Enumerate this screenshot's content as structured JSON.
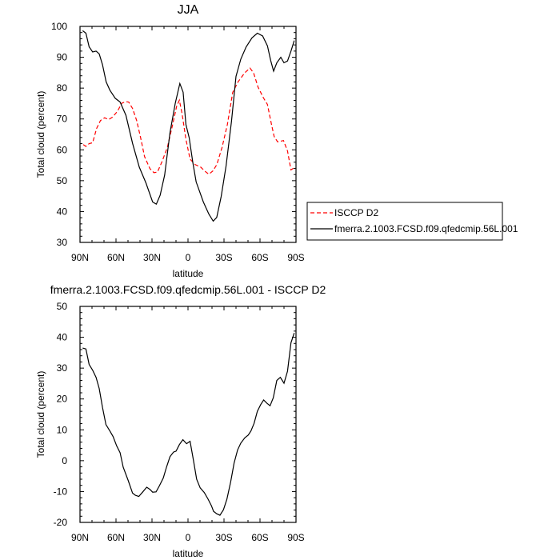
{
  "chart_data": [
    {
      "type": "line",
      "title": "JJA",
      "xlabel": "latitude",
      "ylabel": "Total cloud (percent)",
      "xlim": [
        90,
        -90
      ],
      "ylim": [
        30,
        100
      ],
      "xticks": [
        90,
        60,
        30,
        0,
        -30,
        -60,
        -90
      ],
      "xtick_labels": [
        "90N",
        "60N",
        "30N",
        "0",
        "30S",
        "60S",
        "90S"
      ],
      "yticks": [
        30,
        40,
        50,
        60,
        70,
        80,
        90,
        100
      ],
      "ytick_labels": [
        "30",
        "40",
        "50",
        "60",
        "70",
        "80",
        "90",
        "100"
      ],
      "grid": false,
      "legend_position": "right, outside",
      "series": [
        {
          "name": "ISCCP D2",
          "color": "#ff0000",
          "dash": "dashed",
          "x": [
            87.3,
            85.1,
            82.4,
            79.5,
            76.2,
            72.9,
            69.5,
            66.2,
            62.9,
            58.8,
            55.1,
            51.7,
            49.5,
            46.2,
            42.8,
            39.5,
            36.2,
            31.7,
            28.4,
            25.5,
            21.7,
            17.2,
            12.8,
            9.4,
            7.2,
            4.9,
            1.7,
            -1.7,
            -6.1,
            -10.6,
            -14.0,
            -17.3,
            -20.6,
            -24.0,
            -28.4,
            -32.8,
            -37.3,
            -41.7,
            -47.3,
            -51.7,
            -54.6,
            -58.4,
            -62.9,
            -66.2,
            -69.6,
            -71.8,
            -74.7,
            -79.6,
            -82.9,
            -85.8,
            -88.5
          ],
          "y": [
            61.7,
            61.1,
            62.0,
            62.3,
            66.9,
            69.5,
            70.4,
            69.8,
            70.6,
            72.5,
            75.1,
            75.6,
            75.5,
            73.4,
            69.5,
            63.9,
            57.8,
            53.9,
            52.6,
            52.8,
            56.1,
            60.8,
            68.2,
            74.2,
            76.1,
            71.7,
            63.4,
            57.0,
            55.2,
            54.4,
            53.1,
            52.1,
            53.1,
            55.2,
            60.8,
            68.2,
            78.6,
            82.0,
            85.0,
            86.5,
            85.0,
            80.3,
            76.8,
            74.7,
            68.2,
            64.3,
            62.6,
            63.0,
            59.6,
            53.5,
            54.2
          ]
        },
        {
          "name": "fmerra.2.1003.FCSD.f09.qfedcmip.56L.001",
          "color": "#000000",
          "dash": "solid",
          "x": [
            87.8,
            85.1,
            82.4,
            79.5,
            76.6,
            74.0,
            71.3,
            68.2,
            65.1,
            60.6,
            56.6,
            51.7,
            46.2,
            40.6,
            35.0,
            29.5,
            26.4,
            23.2,
            19.5,
            15.0,
            10.6,
            6.8,
            4.1,
            1.7,
            -1.0,
            -3.9,
            -6.8,
            -12.8,
            -17.3,
            -21.0,
            -23.9,
            -27.7,
            -31.7,
            -36.2,
            -40.0,
            -44.0,
            -48.4,
            -53.3,
            -57.8,
            -62.2,
            -66.2,
            -68.9,
            -71.3,
            -74.0,
            -77.3,
            -80.0,
            -82.9,
            -85.8,
            -88.5
          ],
          "y": [
            98.6,
            97.8,
            93.4,
            91.7,
            92.0,
            91.1,
            87.6,
            82.0,
            79.3,
            76.7,
            75.5,
            71.2,
            62.1,
            54.4,
            49.2,
            43.1,
            42.4,
            45.3,
            51.8,
            65.6,
            75.1,
            81.5,
            78.7,
            68.2,
            63.9,
            56.1,
            49.6,
            43.1,
            39.2,
            36.9,
            38.1,
            44.9,
            54.8,
            69.1,
            83.8,
            89.4,
            93.3,
            96.3,
            97.8,
            96.9,
            93.7,
            88.9,
            85.5,
            88.2,
            90.0,
            88.2,
            88.8,
            92.0,
            95.4
          ]
        }
      ]
    },
    {
      "type": "line",
      "title": "fmerra.2.1003.FCSD.f09.qfedcmip.56L.001 - ISCCP D2",
      "xlabel": "latitude",
      "ylabel": "Total cloud (percent)",
      "xlim": [
        90,
        -90
      ],
      "ylim": [
        -20,
        50
      ],
      "xticks": [
        90,
        60,
        30,
        0,
        -30,
        -60,
        -90
      ],
      "xtick_labels": [
        "90N",
        "60N",
        "30N",
        "0",
        "30S",
        "60S",
        "90S"
      ],
      "yticks": [
        -20,
        -10,
        0,
        10,
        20,
        30,
        40,
        50
      ],
      "ytick_labels": [
        "-20",
        "-10",
        "0",
        "10",
        "20",
        "30",
        "40",
        "50"
      ],
      "grid": false,
      "series": [
        {
          "color": "#000000",
          "dash": "solid",
          "x": [
            87.8,
            85.1,
            82.4,
            79.5,
            76.6,
            74.0,
            71.3,
            68.4,
            65.1,
            62.4,
            59.5,
            56.6,
            54.0,
            49.9,
            46.2,
            43.9,
            41.0,
            37.9,
            34.4,
            31.7,
            29.5,
            26.6,
            23.9,
            20.6,
            17.9,
            15.0,
            12.1,
            9.9,
            7.2,
            4.3,
            1.2,
            -1.7,
            -4.6,
            -7.2,
            -10.1,
            -13.5,
            -16.8,
            -19.5,
            -21.3,
            -23.9,
            -26.6,
            -29.5,
            -32.4,
            -35.5,
            -38.4,
            -41.3,
            -44.0,
            -47.3,
            -50.2,
            -52.4,
            -55.1,
            -57.8,
            -60.6,
            -63.1,
            -65.8,
            -68.4,
            -71.1,
            -74.0,
            -76.9,
            -80.0,
            -82.9,
            -85.8,
            -88.5
          ],
          "y": [
            36.5,
            36.2,
            31.2,
            29.3,
            27.0,
            23.4,
            17.3,
            11.7,
            9.6,
            7.8,
            4.8,
            2.6,
            -2.1,
            -6.4,
            -10.5,
            -11.2,
            -11.6,
            -10.2,
            -8.6,
            -9.3,
            -10.2,
            -10.1,
            -8.2,
            -5.6,
            -2.1,
            1.3,
            2.8,
            3.1,
            5.2,
            6.8,
            5.5,
            6.3,
            0.0,
            -6.0,
            -8.8,
            -10.3,
            -12.5,
            -14.6,
            -16.4,
            -17.2,
            -17.7,
            -15.9,
            -12.5,
            -6.9,
            -0.8,
            3.5,
            5.7,
            7.4,
            8.3,
            9.6,
            12.1,
            16.0,
            18.2,
            19.7,
            18.6,
            17.8,
            20.4,
            26.0,
            27.0,
            25.1,
            29.0,
            38.2,
            41.4
          ]
        }
      ]
    }
  ]
}
